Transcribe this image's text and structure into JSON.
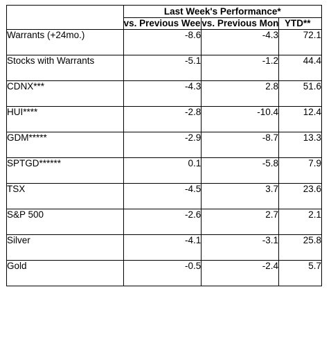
{
  "header": {
    "group_label": "Last Week's Performance*",
    "columns": [
      "vs. Previous Week",
      "vs. Previous Month",
      "YTD**"
    ]
  },
  "rows": [
    {
      "name": "Warrants (+24mo.)",
      "week": "-8.6",
      "month": "-4.3",
      "ytd": "72.1"
    },
    {
      "name": "Stocks with Warrants",
      "week": "-5.1",
      "month": "-1.2",
      "ytd": "44.4"
    },
    {
      "name": "CDNX***",
      "week": "-4.3",
      "month": "2.8",
      "ytd": "51.6"
    },
    {
      "name": "HUI****",
      "week": "-2.8",
      "month": "-10.4",
      "ytd": "12.4"
    },
    {
      "name": "GDM*****",
      "week": "-2.9",
      "month": "-8.7",
      "ytd": "13.3"
    },
    {
      "name": "SPTGD******",
      "week": "0.1",
      "month": "-5.8",
      "ytd": "7.9"
    },
    {
      "name": "TSX",
      "week": "-4.5",
      "month": "3.7",
      "ytd": "23.6"
    },
    {
      "name": "S&P 500",
      "week": "-2.6",
      "month": "2.7",
      "ytd": "2.1"
    },
    {
      "name": "Silver",
      "week": "-4.1",
      "month": "-3.1",
      "ytd": "25.8"
    },
    {
      "name": "Gold",
      "week": "-0.5",
      "month": "-2.4",
      "ytd": "5.7"
    }
  ]
}
